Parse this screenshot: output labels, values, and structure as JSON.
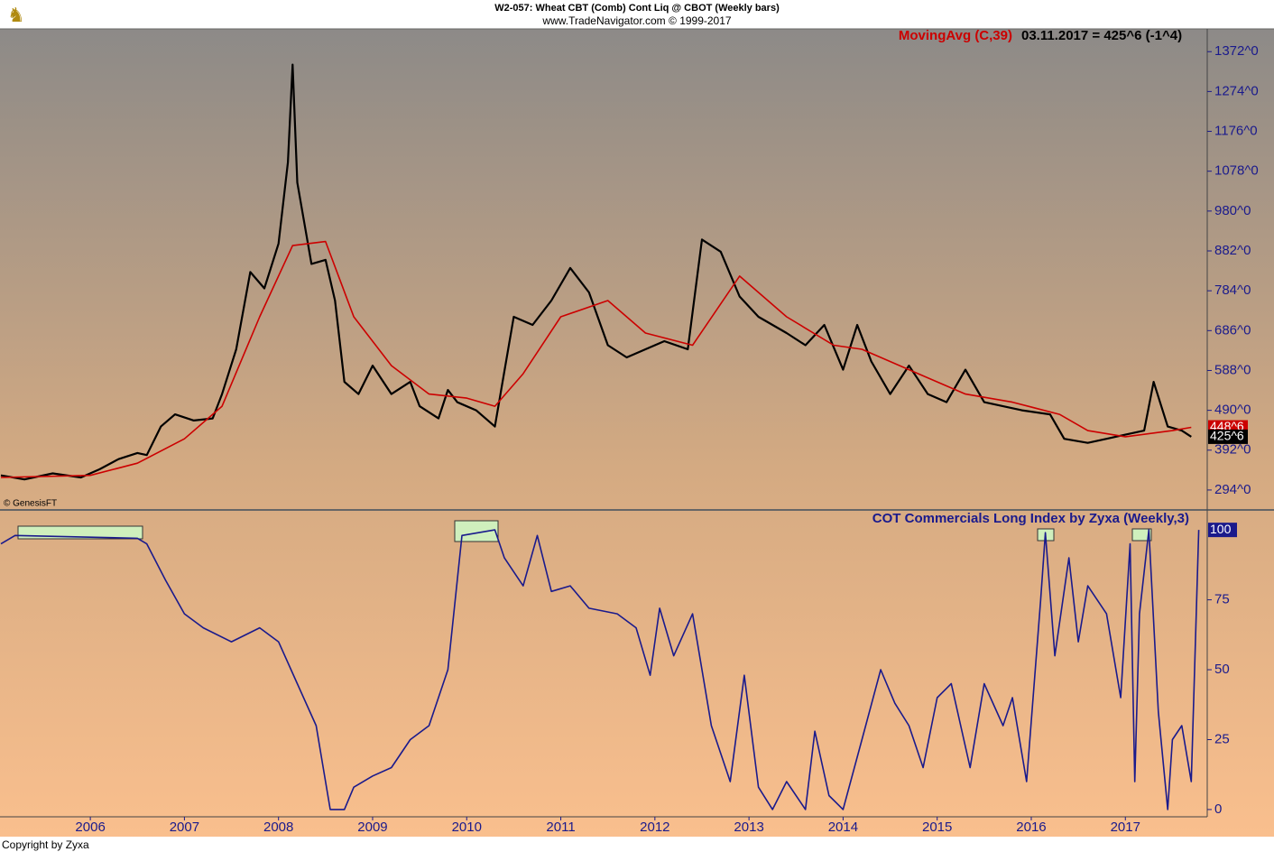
{
  "header": {
    "title": "W2-057:  Wheat CBT (Comb) Cont Liq @ CBOT  (Weekly bars)",
    "subtitle": "www.TradeNavigator.com © 1999-2017",
    "footer": "Copyright by Zyxa"
  },
  "chart_data": [
    {
      "type": "line",
      "annotation": "© GenesisFT",
      "readout": "03.11.2017 = 425^6 (-1^4)",
      "ma_last_label": "448^6",
      "close_last_label": "425^6",
      "xlim": [
        2005.04,
        2017.87
      ],
      "ylim": [
        245,
        1428
      ],
      "yticks": [
        {
          "value": 294,
          "label": "294^0"
        },
        {
          "value": 392,
          "label": "392^0"
        },
        {
          "value": 490,
          "label": "490^0"
        },
        {
          "value": 588,
          "label": "588^0"
        },
        {
          "value": 686,
          "label": "686^0"
        },
        {
          "value": 784,
          "label": "784^0"
        },
        {
          "value": 882,
          "label": "882^0"
        },
        {
          "value": 980,
          "label": "980^0"
        },
        {
          "value": 1078,
          "label": "1078^0"
        },
        {
          "value": 1176,
          "label": "1176^0"
        },
        {
          "value": 1274,
          "label": "1274^0"
        },
        {
          "value": 1372,
          "label": "1372^0"
        }
      ],
      "series": [
        {
          "color": "#000000",
          "x": [
            2005.05,
            2005.3,
            2005.6,
            2005.9,
            2006.1,
            2006.3,
            2006.5,
            2006.6,
            2006.75,
            2006.9,
            2007.1,
            2007.3,
            2007.4,
            2007.55,
            2007.7,
            2007.85,
            2008.0,
            2008.1,
            2008.15,
            2008.2,
            2008.35,
            2008.5,
            2008.6,
            2008.7,
            2008.85,
            2009.0,
            2009.2,
            2009.4,
            2009.5,
            2009.7,
            2009.8,
            2009.9,
            2010.1,
            2010.3,
            2010.5,
            2010.7,
            2010.9,
            2011.1,
            2011.3,
            2011.5,
            2011.7,
            2011.9,
            2012.1,
            2012.35,
            2012.5,
            2012.7,
            2012.9,
            2013.1,
            2013.4,
            2013.6,
            2013.8,
            2014.0,
            2014.15,
            2014.3,
            2014.5,
            2014.7,
            2014.9,
            2015.1,
            2015.3,
            2015.5,
            2015.7,
            2015.9,
            2016.2,
            2016.35,
            2016.6,
            2016.8,
            2017.0,
            2017.2,
            2017.3,
            2017.45,
            2017.6,
            2017.7
          ],
          "values": [
            330,
            320,
            335,
            325,
            345,
            370,
            385,
            380,
            450,
            480,
            465,
            470,
            530,
            640,
            830,
            790,
            900,
            1100,
            1340,
            1050,
            850,
            860,
            760,
            560,
            530,
            600,
            530,
            560,
            500,
            470,
            540,
            510,
            490,
            450,
            720,
            700,
            760,
            840,
            780,
            650,
            620,
            640,
            660,
            640,
            910,
            880,
            770,
            720,
            680,
            650,
            700,
            590,
            700,
            610,
            530,
            600,
            530,
            510,
            590,
            510,
            500,
            490,
            480,
            420,
            410,
            420,
            430,
            440,
            560,
            450,
            440,
            425
          ]
        },
        {
          "name": "MovingAvg (C,39)",
          "color": "#cc0000",
          "x": [
            2005.05,
            2006.0,
            2006.5,
            2007.0,
            2007.4,
            2007.8,
            2008.15,
            2008.5,
            2008.8,
            2009.2,
            2009.6,
            2010.0,
            2010.3,
            2010.6,
            2011.0,
            2011.5,
            2011.9,
            2012.4,
            2012.9,
            2013.4,
            2013.9,
            2014.2,
            2014.8,
            2015.3,
            2015.8,
            2016.3,
            2016.6,
            2017.0,
            2017.5,
            2017.7
          ],
          "values": [
            325,
            330,
            360,
            420,
            500,
            720,
            895,
            905,
            720,
            600,
            530,
            520,
            500,
            580,
            720,
            760,
            680,
            650,
            820,
            720,
            650,
            640,
            580,
            530,
            510,
            480,
            440,
            425,
            440,
            448
          ]
        }
      ]
    },
    {
      "type": "line",
      "title": "COT Commercials Long Index by Zyxa (Weekly,3)",
      "last_label": "100",
      "xlim": [
        2005.04,
        2017.87
      ],
      "ylim": [
        -2.6,
        106.5
      ],
      "xticks": [
        2006,
        2007,
        2008,
        2009,
        2010,
        2011,
        2012,
        2013,
        2014,
        2015,
        2016,
        2017
      ],
      "yticks": [
        0,
        25,
        50,
        75
      ],
      "series": [
        {
          "color": "#1a1a8c",
          "x": [
            2005.05,
            2005.2,
            2006.5,
            2006.6,
            2006.8,
            2007.0,
            2007.2,
            2007.5,
            2007.8,
            2008.0,
            2008.2,
            2008.4,
            2008.5,
            2008.55,
            2008.7,
            2008.8,
            2009.0,
            2009.2,
            2009.4,
            2009.6,
            2009.8,
            2009.95,
            2010.3,
            2010.4,
            2010.6,
            2010.75,
            2010.9,
            2011.1,
            2011.3,
            2011.6,
            2011.8,
            2011.95,
            2012.05,
            2012.2,
            2012.4,
            2012.6,
            2012.8,
            2012.95,
            2013.1,
            2013.25,
            2013.4,
            2013.6,
            2013.7,
            2013.85,
            2014.0,
            2014.2,
            2014.4,
            2014.55,
            2014.7,
            2014.85,
            2015.0,
            2015.15,
            2015.35,
            2015.5,
            2015.7,
            2015.8,
            2015.95,
            2016.1,
            2016.15,
            2016.25,
            2016.4,
            2016.5,
            2016.6,
            2016.8,
            2016.95,
            2017.05,
            2017.1,
            2017.15,
            2017.25,
            2017.35,
            2017.45,
            2017.5,
            2017.6,
            2017.7,
            2017.78
          ],
          "values": [
            95,
            98,
            97,
            95,
            82,
            70,
            65,
            60,
            65,
            60,
            45,
            30,
            10,
            0,
            0,
            8,
            12,
            15,
            25,
            30,
            50,
            98,
            100,
            90,
            80,
            98,
            78,
            80,
            72,
            70,
            65,
            48,
            72,
            55,
            70,
            30,
            10,
            48,
            8,
            0,
            10,
            0,
            28,
            5,
            0,
            25,
            50,
            38,
            30,
            15,
            40,
            45,
            15,
            45,
            30,
            40,
            10,
            75,
            99,
            55,
            90,
            60,
            80,
            70,
            40,
            95,
            10,
            70,
            100,
            35,
            0,
            25,
            30,
            10,
            100
          ]
        }
      ]
    }
  ]
}
